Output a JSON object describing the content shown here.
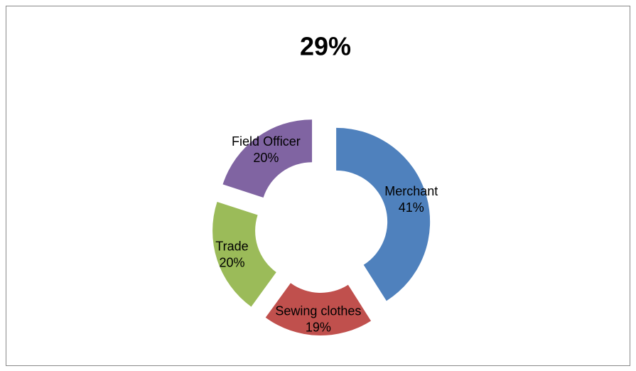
{
  "chart_data": {
    "type": "doughnut",
    "title": "29%",
    "categories": [
      "Merchant",
      "Sewing clothes",
      "Trade",
      "Field Officer"
    ],
    "values": [
      41,
      19,
      20,
      20
    ],
    "value_labels": [
      "41%",
      "19%",
      "20%",
      "20%"
    ],
    "colors": [
      "#4f81bd",
      "#c0504d",
      "#9bbb59",
      "#8064a2"
    ],
    "exploded": true
  }
}
